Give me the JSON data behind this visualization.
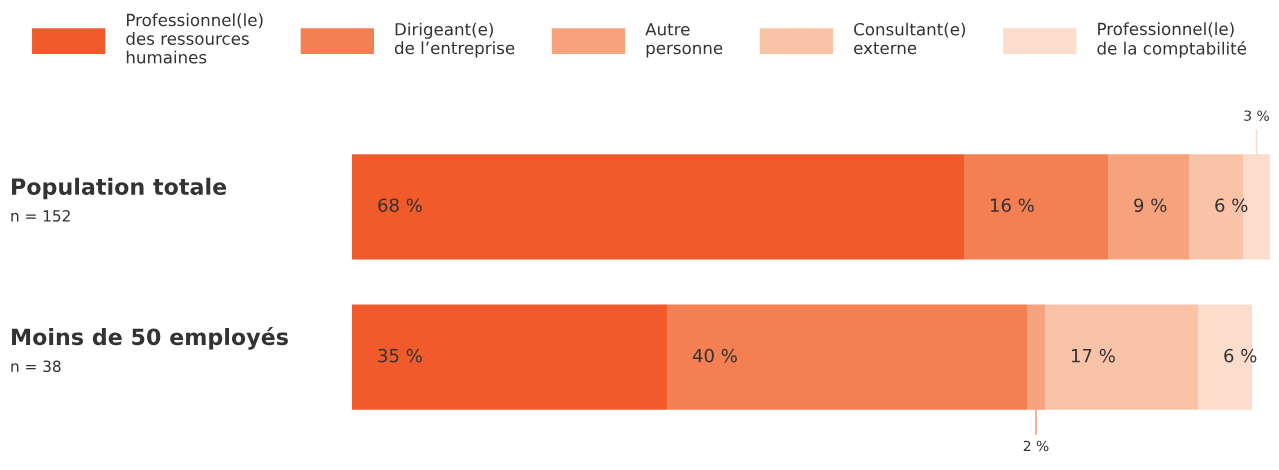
{
  "chart_data": {
    "type": "bar",
    "orientation": "horizontal",
    "stacked": true,
    "legend": "top",
    "tick_labels": "y",
    "categories": [
      "Population totale",
      "Moins de 50 employés"
    ],
    "annotations": [
      "n = 152",
      "n = 38"
    ],
    "series": [
      {
        "name": "Professionnel(le)\ndes ressources\nhumaines",
        "color": "#f15a2b",
        "values": [
          68,
          35
        ],
        "value_labels": [
          "68 %",
          "35 %"
        ]
      },
      {
        "name": "Dirigeant(e)\nde l’entreprise",
        "color": "#f37f52",
        "values": [
          16,
          40
        ],
        "value_labels": [
          "16 %",
          "40 %"
        ]
      },
      {
        "name": "Autre\npersonne",
        "color": "#f6a27c",
        "values": [
          9,
          2
        ],
        "value_labels": [
          "9 %",
          "2 %"
        ]
      },
      {
        "name": "Consultant(e)\nexterne",
        "color": "#f9c3a8",
        "values": [
          6,
          17
        ],
        "value_labels": [
          "6 %",
          "17 %"
        ]
      },
      {
        "name": "Professionnel(le)\nde la comptabilité",
        "color": "#fcdccb",
        "values": [
          3,
          6
        ],
        "value_labels": [
          "3 %",
          "6 %"
        ]
      }
    ]
  }
}
